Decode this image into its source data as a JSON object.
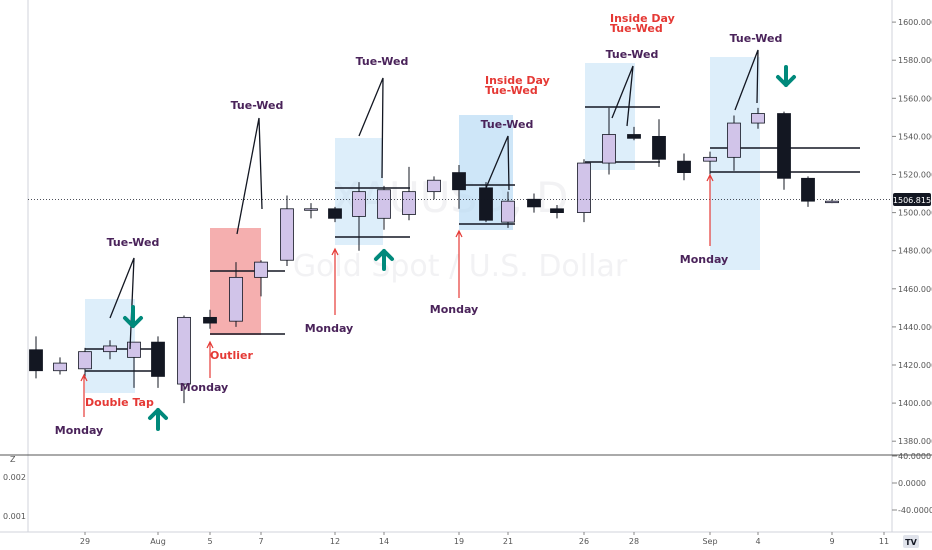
{
  "colors": {
    "bull_fill": "#d1c4e9",
    "bear_fill": "#131722",
    "candle_stroke": "#131722",
    "zone_blue": "#b3d9f5",
    "zone_red": "#f4a6a6",
    "label_purple": "#4a235a",
    "label_red": "#e53935",
    "arrow_teal": "#00897b",
    "last_price_bg": "#131722"
  },
  "watermark": {
    "symbol": "XAUUSD, D",
    "description": "Gold Spot / U.S. Dollar"
  },
  "price_axis": {
    "ticks": [
      "1600.000",
      "1580.000",
      "1560.000",
      "1540.000",
      "1520.000",
      "1500.000",
      "1480.000",
      "1460.000",
      "1440.000",
      "1420.000",
      "1400.000",
      "1380.000"
    ],
    "last_price": "1506.815"
  },
  "indicator_axis": {
    "right_ticks": [
      "40.0000",
      "0.0000",
      "-40.0000"
    ],
    "left_ticks": [
      "0.002",
      "0.001"
    ],
    "left_marker": "Z"
  },
  "time_axis": {
    "labels": [
      "29",
      "Aug",
      "5",
      "7",
      "12",
      "14",
      "19",
      "21",
      "26",
      "28",
      "Sep",
      "4",
      "9",
      "11"
    ]
  },
  "chart_data": {
    "type": "candlestick",
    "symbol": "XAUUSD",
    "timeframe": "D",
    "title": "Gold Spot / U.S. Dollar",
    "ylim": [
      1370,
      1610
    ],
    "candles": [
      {
        "o": 1428,
        "h": 1435,
        "l": 1413,
        "c": 1417
      },
      {
        "o": 1417,
        "h": 1424,
        "l": 1415,
        "c": 1421
      },
      {
        "o": 1418,
        "h": 1429,
        "l": 1413,
        "c": 1427
      },
      {
        "o": 1427,
        "h": 1433,
        "l": 1423,
        "c": 1430
      },
      {
        "o": 1424,
        "h": 1432,
        "l": 1408,
        "c": 1432
      },
      {
        "o": 1432,
        "h": 1435,
        "l": 1408,
        "c": 1414
      },
      {
        "o": 1410,
        "h": 1446,
        "l": 1400,
        "c": 1445
      },
      {
        "o": 1445,
        "h": 1449,
        "l": 1439,
        "c": 1442
      },
      {
        "o": 1443,
        "h": 1474,
        "l": 1440,
        "c": 1466
      },
      {
        "o": 1466,
        "h": 1475,
        "l": 1456,
        "c": 1474
      },
      {
        "o": 1475,
        "h": 1509,
        "l": 1472,
        "c": 1502
      },
      {
        "o": 1502,
        "h": 1505,
        "l": 1497,
        "c": 1502
      },
      {
        "o": 1502,
        "h": 1503,
        "l": 1495,
        "c": 1497
      },
      {
        "o": 1498,
        "h": 1516,
        "l": 1480,
        "c": 1511
      },
      {
        "o": 1497,
        "h": 1514,
        "l": 1491,
        "c": 1512
      },
      {
        "o": 1499,
        "h": 1524,
        "l": 1496,
        "c": 1511
      },
      {
        "o": 1511,
        "h": 1519,
        "l": 1507,
        "c": 1517
      },
      {
        "o": 1521,
        "h": 1525,
        "l": 1502,
        "c": 1512
      },
      {
        "o": 1513,
        "h": 1516,
        "l": 1495,
        "c": 1496
      },
      {
        "o": 1495,
        "h": 1511,
        "l": 1492,
        "c": 1506
      },
      {
        "o": 1507,
        "h": 1510,
        "l": 1500,
        "c": 1503
      },
      {
        "o": 1502,
        "h": 1504,
        "l": 1497,
        "c": 1500
      },
      {
        "o": 1500,
        "h": 1528,
        "l": 1495,
        "c": 1526
      },
      {
        "o": 1526,
        "h": 1555,
        "l": 1520,
        "c": 1541
      },
      {
        "o": 1541,
        "h": 1545,
        "l": 1538,
        "c": 1539
      },
      {
        "o": 1540,
        "h": 1549,
        "l": 1524,
        "c": 1528
      },
      {
        "o": 1527,
        "h": 1531,
        "l": 1517,
        "c": 1521
      },
      {
        "o": 1527,
        "h": 1532,
        "l": 1519,
        "c": 1529
      },
      {
        "o": 1529,
        "h": 1551,
        "l": 1522,
        "c": 1547
      },
      {
        "o": 1547,
        "h": 1555,
        "l": 1544,
        "c": 1552
      },
      {
        "o": 1552,
        "h": 1553,
        "l": 1512,
        "c": 1518
      },
      {
        "o": 1518,
        "h": 1519,
        "l": 1503,
        "c": 1506
      },
      {
        "o": 1506,
        "h": 1507,
        "l": 1505,
        "c": 1506
      }
    ],
    "annotations": [
      "Tue-Wed",
      "Tue-Wed",
      "Tue-Wed",
      "Tue-Wed",
      "Tue-Wed",
      "Tue-Wed",
      "Inside Day",
      "Tue-Wed",
      "Inside Day",
      "Tue-Wed",
      "Monday",
      "Monday",
      "Monday",
      "Monday",
      "Monday",
      "Double Tap",
      "Outlier"
    ]
  },
  "labels": {
    "tuewed1": "Tue-Wed",
    "tuewed2": "Tue-Wed",
    "tuewed3": "Tue-Wed",
    "tuewed4": "Tue-Wed",
    "tuewed5": "Tue-Wed",
    "tuewed6": "Tue-Wed",
    "inside1_a": "Inside Day",
    "inside1_b": "Tue-Wed",
    "inside2_a": "Inside Day",
    "inside2_b": "Tue-Wed",
    "monday1": "Monday",
    "monday2": "Monday",
    "monday3": "Monday",
    "monday4": "Monday",
    "monday5": "Monday",
    "doubletap": "Double Tap",
    "outlier": "Outlier"
  }
}
